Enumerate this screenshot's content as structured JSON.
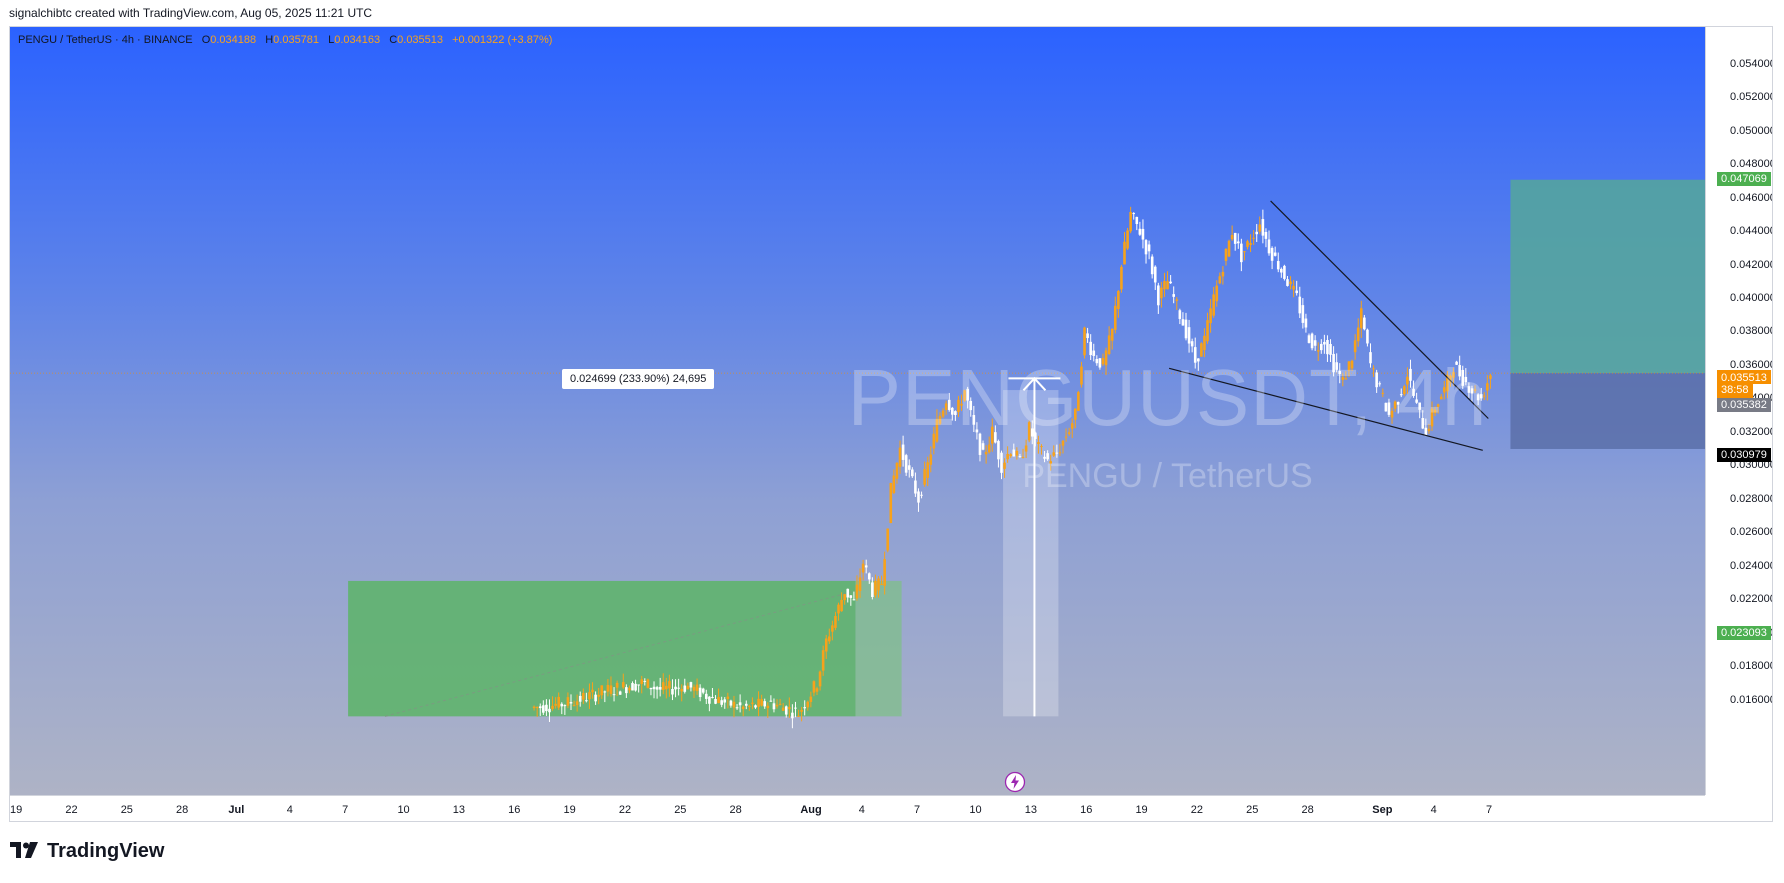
{
  "header": {
    "caption": "signalchibtc created with TradingView.com, Aug 05, 2025 11:21 UTC"
  },
  "legend": {
    "symbol": "PENGU / TetherUS · 4h · BINANCE",
    "o_label": "O",
    "o": "0.034188",
    "h_label": "H",
    "h": "0.035781",
    "l_label": "L",
    "l": "0.034163",
    "c_label": "C",
    "c": "0.035513",
    "change": "+0.001322 (+3.87%)"
  },
  "watermark": {
    "main": "PENGUUSDT, 4h",
    "sub": "PENGU / TetherUS"
  },
  "measure": {
    "label": "0.024699 (233.90%) 24,695"
  },
  "price_badges": {
    "target": "0.047069",
    "current": "0.035513",
    "countdown": "38:58",
    "prev": "0.035382",
    "stop": "0.030979",
    "lower": "0.023093"
  },
  "colors": {
    "candle_up": "#f7a21b",
    "candle_down": "#ffffff",
    "target_zone": "#55a79a",
    "stop_zone": "#5a6ea8",
    "accumulation_zone": "#5cb467",
    "badge_green": "#4caf50",
    "badge_orange": "#f68f00",
    "badge_gray": "#787b86",
    "badge_black": "#000000"
  },
  "logo": {
    "text": "TradingView",
    "icon": "tradingview-logo-icon"
  },
  "chart_data": {
    "type": "candlestick",
    "title": "",
    "ylim": [
      0.0153,
      0.0553
    ],
    "y_ticks": [
      "0.016000",
      "0.018000",
      "0.020000",
      "0.022000",
      "0.024000",
      "0.026000",
      "0.028000",
      "0.030000",
      "0.032000",
      "0.034000",
      "0.036000",
      "0.038000",
      "0.040000",
      "0.042000",
      "0.044000",
      "0.046000",
      "0.048000",
      "0.050000",
      "0.052000",
      "0.054000"
    ],
    "x_ticks": [
      "19",
      "22",
      "25",
      "28",
      "Jul",
      "4",
      "7",
      "10",
      "13",
      "16",
      "19",
      "22",
      "25",
      "28",
      "Aug",
      "4",
      "7",
      "10",
      "13",
      "16",
      "19",
      "22",
      "25",
      "28",
      "Sep",
      "4",
      "7"
    ],
    "close_path": [
      {
        "day": 28.0,
        "price": 0.0155
      },
      {
        "day": 30.0,
        "price": 0.0158
      },
      {
        "day": 32.0,
        "price": 0.0165
      },
      {
        "day": 34.0,
        "price": 0.017
      },
      {
        "day": 35.0,
        "price": 0.0166
      },
      {
        "day": 36.5,
        "price": 0.0168
      },
      {
        "day": 38.0,
        "price": 0.016
      },
      {
        "day": 39.5,
        "price": 0.0155
      },
      {
        "day": 41.0,
        "price": 0.0158
      },
      {
        "day": 42.5,
        "price": 0.0152
      },
      {
        "day": 43.5,
        "price": 0.017
      },
      {
        "day": 44.0,
        "price": 0.0195
      },
      {
        "day": 44.5,
        "price": 0.021
      },
      {
        "day": 45.0,
        "price": 0.0225
      },
      {
        "day": 45.5,
        "price": 0.0218
      },
      {
        "day": 46.0,
        "price": 0.0242
      },
      {
        "day": 46.5,
        "price": 0.0225
      },
      {
        "day": 47.0,
        "price": 0.023
      },
      {
        "day": 47.5,
        "price": 0.0285
      },
      {
        "day": 48.0,
        "price": 0.031
      },
      {
        "day": 48.5,
        "price": 0.0295
      },
      {
        "day": 49.0,
        "price": 0.028
      },
      {
        "day": 49.5,
        "price": 0.03
      },
      {
        "day": 50.0,
        "price": 0.0325
      },
      {
        "day": 50.5,
        "price": 0.034
      },
      {
        "day": 51.0,
        "price": 0.033
      },
      {
        "day": 51.5,
        "price": 0.0345
      },
      {
        "day": 52.0,
        "price": 0.0322
      },
      {
        "day": 52.5,
        "price": 0.0305
      },
      {
        "day": 53.0,
        "price": 0.032
      },
      {
        "day": 53.5,
        "price": 0.03
      },
      {
        "day": 54.0,
        "price": 0.031
      },
      {
        "day": 54.5,
        "price": 0.0302
      },
      {
        "day": 55.0,
        "price": 0.0322
      },
      {
        "day": 55.5,
        "price": 0.031
      },
      {
        "day": 56.0,
        "price": 0.0303
      },
      {
        "day": 56.5,
        "price": 0.0307
      },
      {
        "day": 57.0,
        "price": 0.0318
      },
      {
        "day": 57.5,
        "price": 0.033
      },
      {
        "day": 58.0,
        "price": 0.038
      },
      {
        "day": 58.5,
        "price": 0.0365
      },
      {
        "day": 59.0,
        "price": 0.036
      },
      {
        "day": 59.5,
        "price": 0.038
      },
      {
        "day": 60.0,
        "price": 0.042
      },
      {
        "day": 60.5,
        "price": 0.045
      },
      {
        "day": 61.0,
        "price": 0.044
      },
      {
        "day": 61.5,
        "price": 0.0425
      },
      {
        "day": 62.0,
        "price": 0.04
      },
      {
        "day": 62.5,
        "price": 0.041
      },
      {
        "day": 63.0,
        "price": 0.0395
      },
      {
        "day": 63.5,
        "price": 0.038
      },
      {
        "day": 64.0,
        "price": 0.0362
      },
      {
        "day": 64.5,
        "price": 0.0375
      },
      {
        "day": 65.0,
        "price": 0.04
      },
      {
        "day": 65.5,
        "price": 0.042
      },
      {
        "day": 66.0,
        "price": 0.044
      },
      {
        "day": 66.5,
        "price": 0.0425
      },
      {
        "day": 67.0,
        "price": 0.0435
      },
      {
        "day": 67.5,
        "price": 0.0445
      },
      {
        "day": 68.0,
        "price": 0.043
      },
      {
        "day": 68.5,
        "price": 0.042
      },
      {
        "day": 69.0,
        "price": 0.041
      },
      {
        "day": 69.5,
        "price": 0.04
      },
      {
        "day": 70.0,
        "price": 0.038
      },
      {
        "day": 70.5,
        "price": 0.037
      },
      {
        "day": 71.0,
        "price": 0.0375
      },
      {
        "day": 71.5,
        "price": 0.036
      },
      {
        "day": 72.0,
        "price": 0.035
      },
      {
        "day": 72.5,
        "price": 0.0365
      },
      {
        "day": 73.0,
        "price": 0.039
      },
      {
        "day": 73.5,
        "price": 0.036
      },
      {
        "day": 74.0,
        "price": 0.0345
      },
      {
        "day": 74.5,
        "price": 0.033
      },
      {
        "day": 75.0,
        "price": 0.034
      },
      {
        "day": 75.5,
        "price": 0.0355
      },
      {
        "day": 76.0,
        "price": 0.0335
      },
      {
        "day": 76.5,
        "price": 0.032
      },
      {
        "day": 77.0,
        "price": 0.0335
      },
      {
        "day": 77.5,
        "price": 0.0345
      },
      {
        "day": 78.0,
        "price": 0.036
      },
      {
        "day": 78.5,
        "price": 0.0352
      },
      {
        "day": 79.0,
        "price": 0.0345
      },
      {
        "day": 79.5,
        "price": 0.034
      },
      {
        "day": 80.0,
        "price": 0.0355
      }
    ],
    "drawings": {
      "wedge_upper": [
        {
          "day": 68.0,
          "price": 0.0458
        },
        {
          "day": 79.8,
          "price": 0.0328
        }
      ],
      "wedge_lower": [
        {
          "day": 62.5,
          "price": 0.0358
        },
        {
          "day": 79.5,
          "price": 0.0309
        }
      ],
      "target_zone": {
        "day_start": 81.0,
        "day_end": 101.5,
        "top": 0.047069,
        "bottom": 0.035513
      },
      "stop_zone": {
        "day_start": 81.0,
        "day_end": 101.5,
        "top": 0.035513,
        "bottom": 0.030979
      },
      "accumulation_zone": {
        "day_start": 18.0,
        "day_end": 45.5,
        "top": 0.023093,
        "bottom": 0.015
      },
      "accumulation_zone_light": {
        "day_start": 45.5,
        "day_end": 48.0,
        "top": 0.023093,
        "bottom": 0.015
      },
      "measure_column": {
        "day_start": 53.5,
        "day_end": 56.5,
        "top": 0.0345,
        "bottom": 0.015
      },
      "measure_arrow": {
        "day": 55.2,
        "from": 0.015,
        "to": 0.0352
      }
    }
  }
}
